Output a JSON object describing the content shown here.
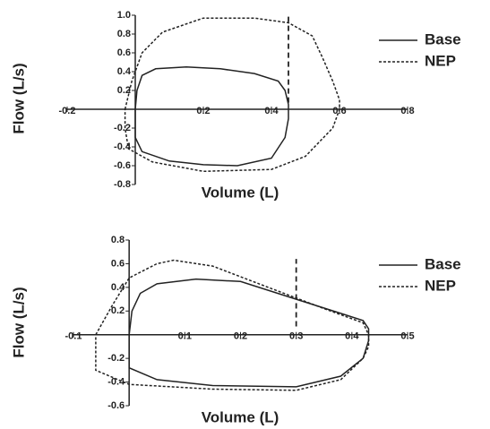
{
  "chart_data": [
    {
      "type": "line",
      "x_label": "Volume (L)",
      "y_label": "Flow (L/s)",
      "xlim": [
        -0.2,
        0.8
      ],
      "ylim": [
        -0.8,
        1.0
      ],
      "xticks": [
        -0.2,
        0.2,
        0.4,
        0.6,
        0.8
      ],
      "yticks": [
        -0.8,
        -0.6,
        -0.4,
        -0.2,
        0.2,
        0.4,
        0.6,
        0.8,
        {
          "value": 1.0,
          "label": "1.0"
        }
      ],
      "vline": {
        "x": 0.45,
        "y": [
          0.07,
          1.0
        ]
      },
      "series": [
        {
          "name": "Base",
          "color": "#222",
          "style": "solid",
          "x": [
            0,
            0.005,
            0.02,
            0.06,
            0.15,
            0.25,
            0.35,
            0.42,
            0.44,
            0.45,
            0.45,
            0.44,
            0.4,
            0.3,
            0.2,
            0.1,
            0.02,
            0,
            0
          ],
          "values": [
            0,
            0.2,
            0.36,
            0.43,
            0.45,
            0.43,
            0.38,
            0.3,
            0.2,
            0.05,
            -0.1,
            -0.3,
            -0.52,
            -0.6,
            -0.59,
            -0.55,
            -0.45,
            -0.3,
            0
          ]
        },
        {
          "name": "NEP",
          "color": "#222",
          "style": "dashed",
          "x": [
            -0.03,
            -0.01,
            0.02,
            0.08,
            0.2,
            0.35,
            0.45,
            0.52,
            0.55,
            0.58,
            0.6,
            0.6,
            0.58,
            0.5,
            0.4,
            0.2,
            0.05,
            -0.02,
            -0.03,
            -0.03
          ],
          "values": [
            0,
            0.3,
            0.6,
            0.82,
            0.97,
            0.97,
            0.92,
            0.78,
            0.55,
            0.3,
            0.1,
            0,
            -0.2,
            -0.5,
            -0.64,
            -0.66,
            -0.56,
            -0.42,
            -0.2,
            0
          ]
        }
      ]
    },
    {
      "type": "line",
      "x_label": "Volume (L)",
      "y_label": "Flow (L/s)",
      "xlim": [
        -0.1,
        0.5
      ],
      "ylim": [
        -0.6,
        0.8
      ],
      "xticks": [
        -0.1,
        0.1,
        0.2,
        0.3,
        0.4,
        0.5
      ],
      "yticks": [
        -0.6,
        -0.4,
        -0.2,
        0.2,
        0.4,
        0.6,
        0.8
      ],
      "vline": {
        "x": 0.3,
        "y": [
          0.07,
          0.64
        ]
      },
      "series": [
        {
          "name": "Base",
          "color": "#222",
          "style": "solid",
          "x": [
            0,
            0.005,
            0.02,
            0.05,
            0.12,
            0.2,
            0.3,
            0.38,
            0.42,
            0.43,
            0.43,
            0.42,
            0.38,
            0.3,
            0.15,
            0.05,
            0,
            0
          ],
          "values": [
            0,
            0.2,
            0.35,
            0.43,
            0.47,
            0.45,
            0.3,
            0.18,
            0.12,
            0.05,
            -0.05,
            -0.2,
            -0.35,
            -0.44,
            -0.43,
            -0.38,
            -0.28,
            0
          ]
        },
        {
          "name": "NEP",
          "color": "#222",
          "style": "dashed",
          "x": [
            -0.06,
            -0.03,
            0,
            0.05,
            0.08,
            0.15,
            0.25,
            0.35,
            0.42,
            0.43,
            0.43,
            0.42,
            0.38,
            0.3,
            0.15,
            0,
            -0.06,
            -0.06,
            -0.06
          ],
          "values": [
            0,
            0.25,
            0.48,
            0.6,
            0.63,
            0.58,
            0.4,
            0.22,
            0.1,
            0,
            -0.1,
            -0.2,
            -0.38,
            -0.47,
            -0.46,
            -0.42,
            -0.3,
            -0.1,
            0
          ]
        }
      ]
    }
  ]
}
